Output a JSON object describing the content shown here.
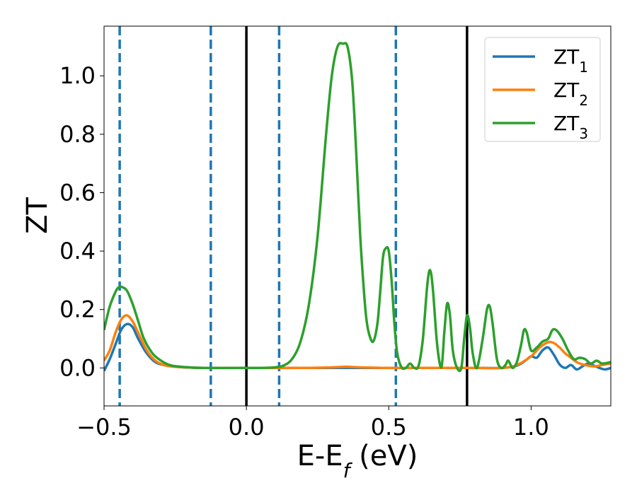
{
  "chart_data": {
    "type": "line",
    "xlabel": "E-E",
    "xlabel_sub": "f",
    "xlabel_unit": " (eV)",
    "ylabel": "ZT",
    "xlim": [
      -0.5,
      1.28
    ],
    "ylim": [
      -0.13,
      1.17
    ],
    "xticks": [
      -0.5,
      0.0,
      0.5,
      1.0
    ],
    "xtick_labels": [
      "−0.5",
      "0.0",
      "0.5",
      "1.0"
    ],
    "yticks": [
      0.0,
      0.2,
      0.4,
      0.6,
      0.8,
      1.0
    ],
    "ytick_labels": [
      "0.0",
      "0.2",
      "0.4",
      "0.6",
      "0.8",
      "1.0"
    ],
    "grid": false,
    "legend_position": "top-right",
    "colors": {
      "ZT1": "#1f77b4",
      "ZT2": "#ff7f0e",
      "ZT3": "#2ca02c",
      "vline_solid": "#000000",
      "vline_dashed": "#1f77b4"
    },
    "vlines_solid": [
      0.0,
      0.775
    ],
    "vlines_dashed": [
      -0.445,
      -0.125,
      0.115,
      0.525
    ],
    "series": [
      {
        "name": "ZT",
        "sub": "1",
        "color": "#1f77b4",
        "x": [
          -0.5,
          -0.48,
          -0.46,
          -0.44,
          -0.42,
          -0.4,
          -0.38,
          -0.35,
          -0.32,
          -0.29,
          -0.26,
          -0.22,
          -0.15,
          0.0,
          0.2,
          0.4,
          0.6,
          0.8,
          0.9,
          0.95,
          0.98,
          1.0,
          1.02,
          1.04,
          1.06,
          1.08,
          1.1,
          1.12,
          1.14,
          1.16,
          1.18,
          1.2,
          1.22,
          1.24,
          1.26,
          1.28
        ],
        "y": [
          -0.01,
          0.03,
          0.08,
          0.13,
          0.15,
          0.14,
          0.1,
          0.05,
          0.02,
          0.01,
          0.005,
          0.002,
          0.0,
          0.0,
          0.0,
          0.0,
          0.0,
          0.0,
          0.0,
          0.008,
          0.025,
          0.04,
          0.035,
          0.06,
          0.07,
          0.045,
          0.012,
          0.0,
          0.01,
          -0.005,
          0.005,
          0.015,
          0.008,
          0.0,
          -0.005,
          0.0
        ]
      },
      {
        "name": "ZT",
        "sub": "2",
        "color": "#ff7f0e",
        "x": [
          -0.5,
          -0.48,
          -0.46,
          -0.44,
          -0.42,
          -0.4,
          -0.38,
          -0.35,
          -0.32,
          -0.29,
          -0.26,
          -0.22,
          -0.15,
          0.0,
          0.2,
          0.3,
          0.35,
          0.4,
          0.5,
          0.6,
          0.8,
          0.9,
          0.95,
          1.0,
          1.03,
          1.06,
          1.08,
          1.1,
          1.12,
          1.14,
          1.16,
          1.18,
          1.2,
          1.22,
          1.24,
          1.26,
          1.28
        ],
        "y": [
          0.025,
          0.06,
          0.12,
          0.165,
          0.18,
          0.16,
          0.12,
          0.06,
          0.025,
          0.01,
          0.005,
          0.002,
          0.0,
          0.0,
          0.0,
          0.002,
          0.004,
          0.002,
          0.0,
          0.0,
          0.0,
          0.0,
          0.01,
          0.04,
          0.07,
          0.088,
          0.085,
          0.07,
          0.05,
          0.035,
          0.02,
          0.012,
          0.008,
          0.005,
          0.008,
          0.012,
          0.015
        ]
      },
      {
        "name": "ZT",
        "sub": "3",
        "color": "#2ca02c",
        "x": [
          -0.5,
          -0.48,
          -0.46,
          -0.45,
          -0.44,
          -0.42,
          -0.4,
          -0.38,
          -0.36,
          -0.33,
          -0.3,
          -0.27,
          -0.24,
          -0.2,
          -0.15,
          0.0,
          0.05,
          0.1,
          0.13,
          0.16,
          0.19,
          0.22,
          0.25,
          0.28,
          0.3,
          0.32,
          0.34,
          0.355,
          0.37,
          0.38,
          0.39,
          0.4,
          0.41,
          0.42,
          0.43,
          0.445,
          0.46,
          0.47,
          0.48,
          0.49,
          0.5,
          0.51,
          0.52,
          0.53,
          0.545,
          0.56,
          0.575,
          0.59,
          0.605,
          0.62,
          0.635,
          0.645,
          0.655,
          0.67,
          0.685,
          0.695,
          0.705,
          0.715,
          0.725,
          0.74,
          0.755,
          0.765,
          0.775,
          0.785,
          0.795,
          0.81,
          0.83,
          0.845,
          0.855,
          0.865,
          0.88,
          0.895,
          0.91,
          0.92,
          0.935,
          0.95,
          0.965,
          0.975,
          0.985,
          1.0,
          1.02,
          1.04,
          1.06,
          1.075,
          1.09,
          1.11,
          1.13,
          1.15,
          1.17,
          1.19,
          1.21,
          1.23,
          1.25,
          1.28
        ],
        "y": [
          0.13,
          0.21,
          0.26,
          0.275,
          0.278,
          0.265,
          0.22,
          0.16,
          0.1,
          0.05,
          0.025,
          0.01,
          0.005,
          0.002,
          0.0,
          0.0,
          0.0,
          0.002,
          0.008,
          0.03,
          0.09,
          0.22,
          0.45,
          0.8,
          1.0,
          1.1,
          1.11,
          1.1,
          1.0,
          0.85,
          0.65,
          0.45,
          0.3,
          0.18,
          0.12,
          0.09,
          0.15,
          0.26,
          0.38,
          0.41,
          0.4,
          0.3,
          0.15,
          0.05,
          0.002,
          0.0,
          0.015,
          0.0,
          0.008,
          0.1,
          0.28,
          0.335,
          0.27,
          0.08,
          0.002,
          0.12,
          0.22,
          0.18,
          0.06,
          0.0,
          0.0,
          0.1,
          0.18,
          0.14,
          0.05,
          0.0,
          0.1,
          0.2,
          0.21,
          0.15,
          0.03,
          0.0,
          0.01,
          0.025,
          0.0,
          0.02,
          0.08,
          0.13,
          0.12,
          0.06,
          0.07,
          0.09,
          0.1,
          0.13,
          0.128,
          0.1,
          0.06,
          0.03,
          0.035,
          0.03,
          0.015,
          0.025,
          0.015,
          0.02
        ]
      }
    ]
  }
}
